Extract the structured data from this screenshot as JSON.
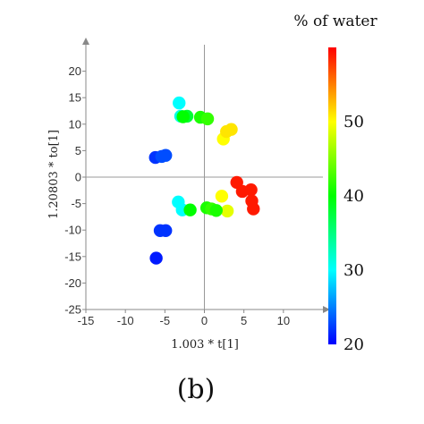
{
  "chart_data": {
    "type": "scatter",
    "title": "",
    "xlabel": "1.003 * t[1]",
    "ylabel": "1.20803 * to[1]",
    "xlim": [
      -15,
      15
    ],
    "ylim": [
      -25,
      25
    ],
    "xticks": [
      -15,
      -10,
      -5,
      0,
      5,
      10
    ],
    "yticks": [
      -25,
      -20,
      -15,
      -10,
      -5,
      0,
      5,
      10,
      15,
      20
    ],
    "grid": false,
    "colorbar": {
      "title": "% of water",
      "min": 20,
      "max": 60,
      "ticks": [
        20,
        30,
        40,
        50
      ],
      "colormap": [
        "#0000ff",
        "#00ffff",
        "#00ff00",
        "#ffff00",
        "#ff0000"
      ]
    },
    "panel_label": "(b)",
    "points": [
      {
        "x": -3.2,
        "y": 14,
        "water": 30
      },
      {
        "x": -3,
        "y": 11.5,
        "water": 31
      },
      {
        "x": -2.2,
        "y": 11.5,
        "water": 38
      },
      {
        "x": -2.7,
        "y": 11.4,
        "water": 40
      },
      {
        "x": -0.5,
        "y": 11.3,
        "water": 41
      },
      {
        "x": 0.4,
        "y": 11,
        "water": 42
      },
      {
        "x": 2.4,
        "y": 7.2,
        "water": 50
      },
      {
        "x": 2.8,
        "y": 8.6,
        "water": 51
      },
      {
        "x": 3.4,
        "y": 9,
        "water": 51
      },
      {
        "x": -6.2,
        "y": 3.7,
        "water": 22
      },
      {
        "x": -5.4,
        "y": 3.9,
        "water": 23
      },
      {
        "x": -4.9,
        "y": 4.1,
        "water": 23
      },
      {
        "x": 4.1,
        "y": -1,
        "water": 59
      },
      {
        "x": 4.8,
        "y": -2.7,
        "water": 59
      },
      {
        "x": 5.9,
        "y": -2.4,
        "water": 59
      },
      {
        "x": 6,
        "y": -4.5,
        "water": 59
      },
      {
        "x": 6.2,
        "y": -6,
        "water": 59
      },
      {
        "x": 2.2,
        "y": -3.6,
        "water": 50
      },
      {
        "x": 2.9,
        "y": -6.4,
        "water": 49
      },
      {
        "x": -3.3,
        "y": -4.7,
        "water": 30
      },
      {
        "x": -2.8,
        "y": -6.2,
        "water": 30
      },
      {
        "x": -1.8,
        "y": -6.2,
        "water": 40
      },
      {
        "x": 0.3,
        "y": -5.8,
        "water": 41
      },
      {
        "x": 0.9,
        "y": -6,
        "water": 42
      },
      {
        "x": 1.5,
        "y": -6.3,
        "water": 41
      },
      {
        "x": -5.6,
        "y": -10.1,
        "water": 22
      },
      {
        "x": -4.9,
        "y": -10.1,
        "water": 22
      },
      {
        "x": -6.1,
        "y": -15.3,
        "water": 21
      }
    ]
  }
}
